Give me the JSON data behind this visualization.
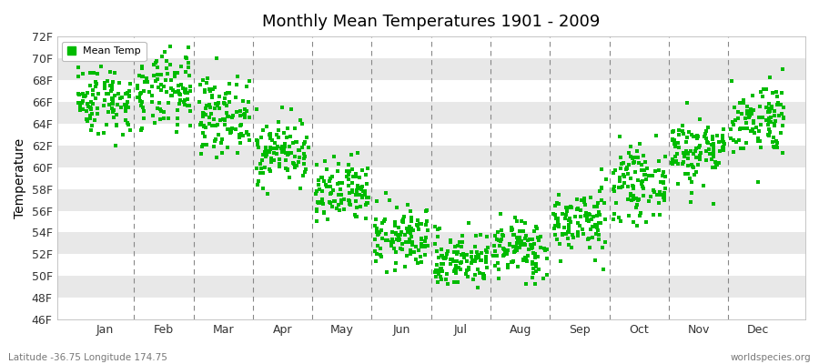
{
  "title": "Monthly Mean Temperatures 1901 - 2009",
  "ylabel": "Temperature",
  "xlabel_labels": [
    "Jan",
    "Feb",
    "Mar",
    "Apr",
    "May",
    "Jun",
    "Jul",
    "Aug",
    "Sep",
    "Oct",
    "Nov",
    "Dec"
  ],
  "ytick_labels": [
    "46F",
    "48F",
    "50F",
    "52F",
    "54F",
    "56F",
    "58F",
    "60F",
    "62F",
    "64F",
    "66F",
    "68F",
    "70F",
    "72F"
  ],
  "ytick_values": [
    46,
    48,
    50,
    52,
    54,
    56,
    58,
    60,
    62,
    64,
    66,
    68,
    70,
    72
  ],
  "ylim": [
    46,
    72
  ],
  "dot_color": "#00BB00",
  "marker": "s",
  "marker_size": 2.5,
  "legend_label": "Mean Temp",
  "subtitle": "Latitude -36.75 Longitude 174.75",
  "watermark": "worldspecies.org",
  "background_color": "#FFFFFF",
  "plot_bg_color": "#F0F0F0",
  "band_color_light": "#FFFFFF",
  "band_color_dark": "#E8E8E8",
  "vline_color": "#888888",
  "monthly_means_F": [
    66.2,
    66.8,
    64.8,
    61.5,
    57.5,
    53.5,
    51.5,
    52.5,
    55.0,
    58.5,
    61.5,
    64.5
  ],
  "monthly_stds_F": [
    1.6,
    1.8,
    1.7,
    1.5,
    1.5,
    1.4,
    1.3,
    1.4,
    1.5,
    1.6,
    1.6,
    1.7
  ],
  "years": 109,
  "seed": 42,
  "figsize": [
    9.0,
    4.0
  ],
  "dpi": 100
}
